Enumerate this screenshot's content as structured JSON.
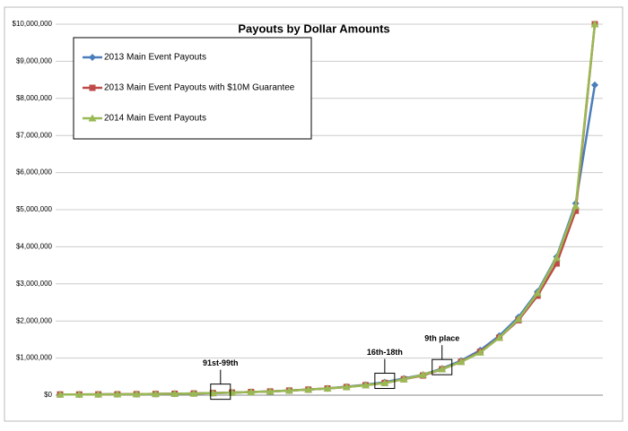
{
  "chart_data": {
    "type": "line",
    "title": "Payouts by Dollar Amounts",
    "categories": [
      null,
      null,
      null,
      null,
      null,
      null,
      null,
      null,
      null,
      null,
      null,
      null,
      null,
      null,
      null,
      null,
      null,
      null,
      null,
      null,
      null,
      null,
      null,
      null,
      null,
      null,
      null,
      null,
      null
    ],
    "series": [
      {
        "name": "2013 Main Event Payouts",
        "color": "#4a7ebb",
        "marker": "diamond",
        "values": [
          19000,
          19000,
          21000,
          23000,
          27000,
          32000,
          38000,
          45000,
          57000,
          70000,
          85000,
          100000,
          125000,
          150000,
          180000,
          230000,
          280000,
          350000,
          450000,
          550000,
          720000,
          930000,
          1210000,
          1600000,
          2100000,
          2790000,
          3730000,
          5170000,
          8360000
        ]
      },
      {
        "name": "2013 Main Event Payouts with $10M Guarantee",
        "color": "#be4b48",
        "marker": "square",
        "values": [
          19000,
          19000,
          21000,
          23000,
          27000,
          32000,
          38000,
          45000,
          57000,
          70000,
          85000,
          100000,
          125000,
          150000,
          180000,
          220000,
          270000,
          330000,
          430000,
          530000,
          700000,
          900000,
          1170000,
          1550000,
          2020000,
          2680000,
          3550000,
          4970000,
          10000000
        ]
      },
      {
        "name": "2014 Main Event Payouts",
        "color": "#98b954",
        "marker": "triangle",
        "values": [
          19000,
          19000,
          21000,
          23000,
          27000,
          32000,
          38000,
          45000,
          57000,
          70000,
          85000,
          100000,
          125000,
          150000,
          180000,
          220000,
          270000,
          330000,
          430000,
          550000,
          700000,
          900000,
          1150000,
          1550000,
          2050000,
          2750000,
          3700000,
          5100000,
          10000000
        ]
      }
    ],
    "ylim": [
      0,
      10000000
    ],
    "yticks": [
      {
        "value": 0,
        "label": "$0"
      },
      {
        "value": 1000000,
        "label": "$1,000,000"
      },
      {
        "value": 2000000,
        "label": "$2,000,000"
      },
      {
        "value": 3000000,
        "label": "$3,000,000"
      },
      {
        "value": 4000000,
        "label": "$4,000,000"
      },
      {
        "value": 5000000,
        "label": "$5,000,000"
      },
      {
        "value": 6000000,
        "label": "$6,000,000"
      },
      {
        "value": 7000000,
        "label": "$7,000,000"
      },
      {
        "value": 8000000,
        "label": "$8,000,000"
      },
      {
        "value": 9000000,
        "label": "$9,000,000"
      },
      {
        "value": 10000000,
        "label": "$10,000,000"
      }
    ],
    "grid": true,
    "legend": "upper-left",
    "annotations": [
      "91st-99th",
      "16th-18th",
      "9th place"
    ]
  }
}
